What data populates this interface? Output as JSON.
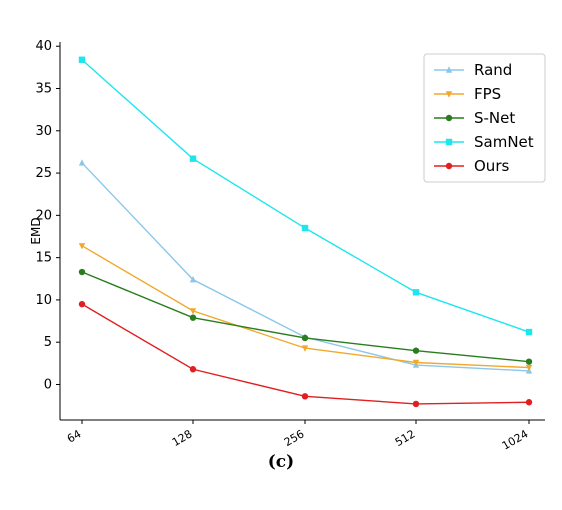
{
  "caption": "(c)",
  "chart_data": {
    "type": "line",
    "title": "",
    "xlabel": "",
    "ylabel": "EMD",
    "x": [
      "64",
      "128",
      "256",
      "512",
      "1024"
    ],
    "ylim": [
      -4.2,
      40.5
    ],
    "yticks": [
      0,
      5,
      10,
      15,
      20,
      25,
      30,
      35,
      40
    ],
    "grid": false,
    "legend_position": "top-right",
    "series": [
      {
        "name": "Rand",
        "color": "#8cc7ea",
        "marker": "triangle-up",
        "values": [
          26.2,
          12.4,
          5.6,
          2.3,
          1.6
        ]
      },
      {
        "name": "FPS",
        "color": "#f0a92c",
        "marker": "triangle-down",
        "values": [
          16.4,
          8.7,
          4.3,
          2.6,
          2.0
        ]
      },
      {
        "name": "S-Net",
        "color": "#2a7d1f",
        "marker": "circle",
        "values": [
          13.3,
          7.9,
          5.5,
          4.0,
          2.7
        ]
      },
      {
        "name": "SamNet",
        "color": "#1ee6ee",
        "marker": "square",
        "values": [
          38.4,
          26.7,
          18.5,
          10.9,
          6.2
        ]
      },
      {
        "name": "Ours",
        "color": "#e02020",
        "marker": "circle",
        "values": [
          9.5,
          1.8,
          -1.4,
          -2.3,
          -2.1
        ]
      }
    ]
  }
}
